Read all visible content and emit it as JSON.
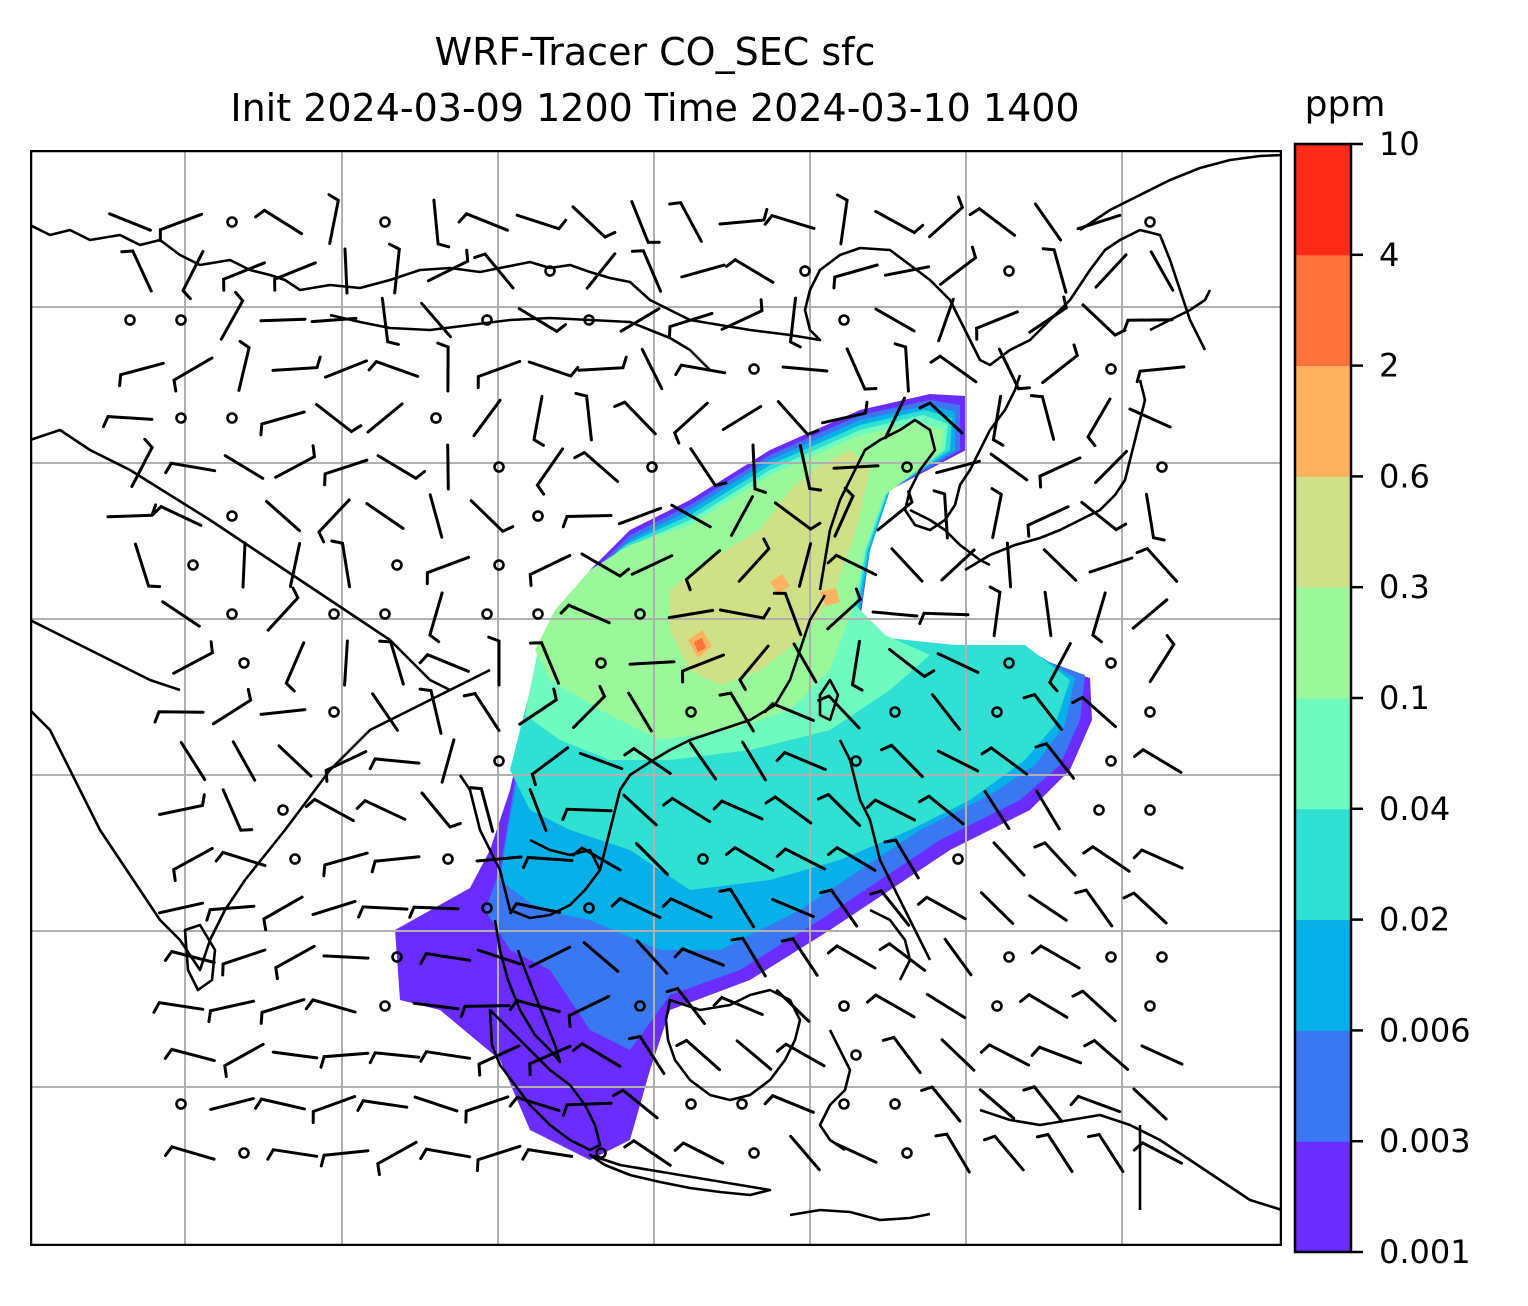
{
  "title": {
    "line1": "WRF-Tracer CO_SEC sfc",
    "line2": "Init 2024-03-09 1200 Time 2024-03-10 1400"
  },
  "colorbar": {
    "unit": "ppm",
    "ticks": [
      "0.001",
      "0.003",
      "0.006",
      "0.02",
      "0.04",
      "0.1",
      "0.3",
      "0.6",
      "2",
      "4",
      "10"
    ],
    "colors": [
      "#6a2cff",
      "#3a78f2",
      "#08b0ea",
      "#30e0d2",
      "#6ffac0",
      "#9af79a",
      "#cfe087",
      "#ffb25e",
      "#ff723a",
      "#ff2a18"
    ]
  },
  "map": {
    "frame_color": "#000000",
    "gridline_color": "#b0b0b0",
    "coastline_color": "#000000",
    "wind_barb_color": "#000000"
  }
}
